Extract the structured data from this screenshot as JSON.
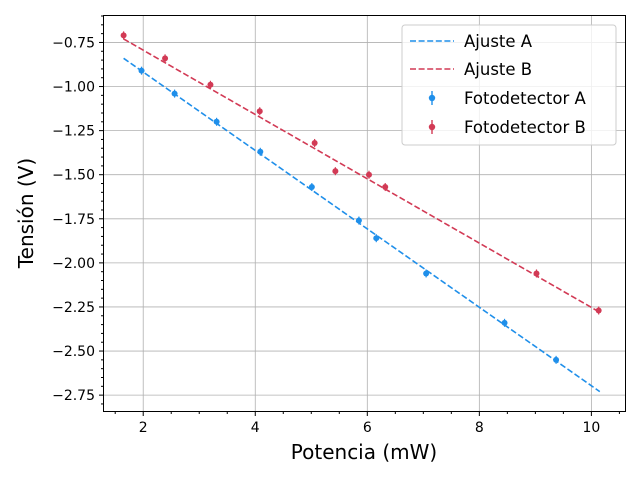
{
  "chart_data": {
    "type": "scatter",
    "xlabel": "Potencia (mW)",
    "ylabel": "Tensión (V)",
    "xlim": [
      1.3,
      10.6
    ],
    "ylim": [
      -2.84,
      -0.6
    ],
    "xticks": [
      2,
      4,
      6,
      8,
      10
    ],
    "xtick_labels": [
      "2",
      "4",
      "6",
      "8",
      "10"
    ],
    "x_minor_step": 0.5,
    "yticks": [
      -0.75,
      -1.0,
      -1.25,
      -1.5,
      -1.75,
      -2.0,
      -2.25,
      -2.5,
      -2.75
    ],
    "ytick_labels": [
      "−0.75",
      "−1.00",
      "−1.25",
      "−1.50",
      "−1.75",
      "−2.00",
      "−2.25",
      "−2.50",
      "−2.75"
    ],
    "y_minor_step": 0.05,
    "grid": true,
    "legend_position": "top-right",
    "colors": {
      "A": "#1f8fea",
      "B": "#d23a55"
    },
    "fits": [
      {
        "name": "Ajuste A",
        "color": "#1f8fea",
        "x": [
          1.65,
          10.15
        ],
        "y": [
          -0.84,
          -2.73
        ]
      },
      {
        "name": "Ajuste B",
        "color": "#d23a55",
        "x": [
          1.65,
          10.15
        ],
        "y": [
          -0.73,
          -2.28
        ]
      }
    ],
    "series": [
      {
        "name": "Fotodetector A",
        "color": "#1f8fea",
        "x": [
          1.97,
          2.56,
          3.31,
          4.09,
          5.01,
          5.85,
          6.16,
          7.05,
          8.45,
          9.37
        ],
        "y": [
          -0.91,
          -1.04,
          -1.2,
          -1.37,
          -1.57,
          -1.76,
          -1.86,
          -2.06,
          -2.34,
          -2.55
        ]
      },
      {
        "name": "Fotodetector B",
        "color": "#d23a55",
        "x": [
          1.65,
          2.39,
          3.2,
          4.08,
          5.06,
          5.43,
          6.03,
          6.32,
          9.02,
          10.13
        ],
        "y": [
          -0.71,
          -0.84,
          -0.99,
          -1.14,
          -1.32,
          -1.48,
          -1.5,
          -1.57,
          -2.06,
          -2.27
        ]
      }
    ],
    "legend": [
      "Ajuste A",
      "Ajuste B",
      "Fotodetector A",
      "Fotodetector B"
    ]
  }
}
